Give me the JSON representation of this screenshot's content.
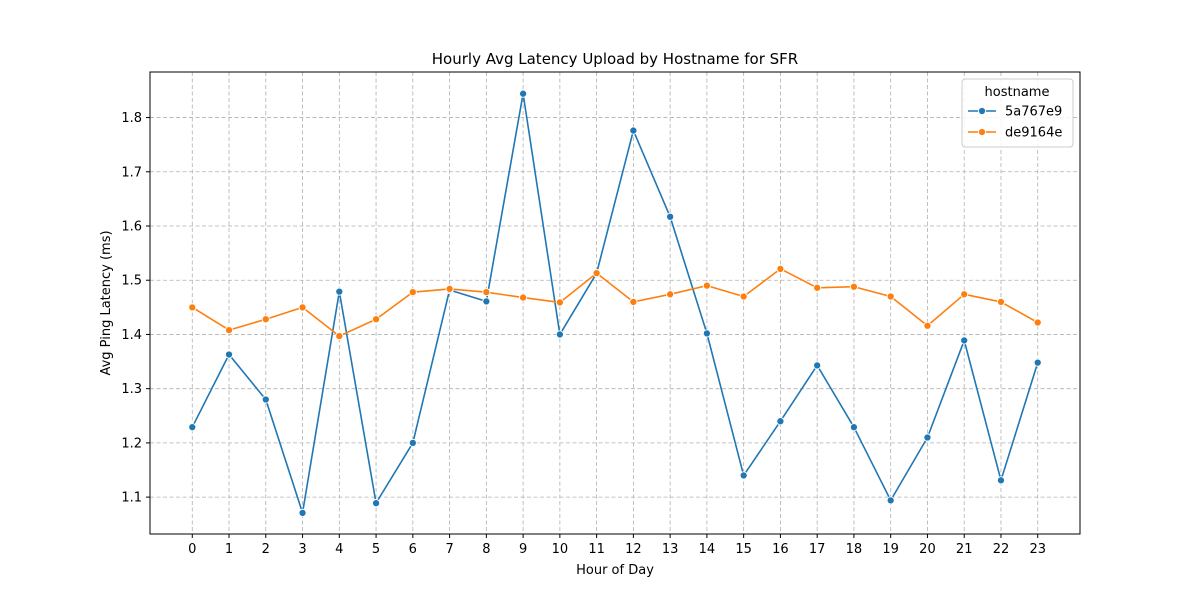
{
  "chart_data": {
    "type": "line",
    "title": "Hourly Avg Latency Upload by Hostname for SFR",
    "xlabel": "Hour of Day",
    "ylabel": "Avg Ping Latency (ms)",
    "x": [
      0,
      1,
      2,
      3,
      4,
      5,
      6,
      7,
      8,
      9,
      10,
      11,
      12,
      13,
      14,
      15,
      16,
      17,
      18,
      19,
      20,
      21,
      22,
      23
    ],
    "xlim": [
      -1.15,
      24.15
    ],
    "ylim": [
      1.032,
      1.884
    ],
    "yticks": [
      1.1,
      1.2,
      1.3,
      1.4,
      1.5,
      1.6,
      1.7,
      1.8
    ],
    "grid": true,
    "legend": {
      "title": "hostname",
      "position": "top-right"
    },
    "series": [
      {
        "name": "5a767e9",
        "color": "#1f77b4",
        "values": [
          1.229,
          1.363,
          1.28,
          1.071,
          1.479,
          1.089,
          1.2,
          1.482,
          1.461,
          1.844,
          1.4,
          1.513,
          1.776,
          1.617,
          1.402,
          1.14,
          1.24,
          1.343,
          1.229,
          1.094,
          1.21,
          1.389,
          1.131,
          1.348
        ]
      },
      {
        "name": "de9164e",
        "color": "#ff7f0e",
        "values": [
          1.45,
          1.408,
          1.428,
          1.45,
          1.397,
          1.428,
          1.478,
          1.484,
          1.478,
          1.468,
          1.459,
          1.513,
          1.46,
          1.474,
          1.49,
          1.47,
          1.521,
          1.486,
          1.488,
          1.47,
          1.416,
          1.474,
          1.46,
          1.422
        ]
      }
    ]
  }
}
